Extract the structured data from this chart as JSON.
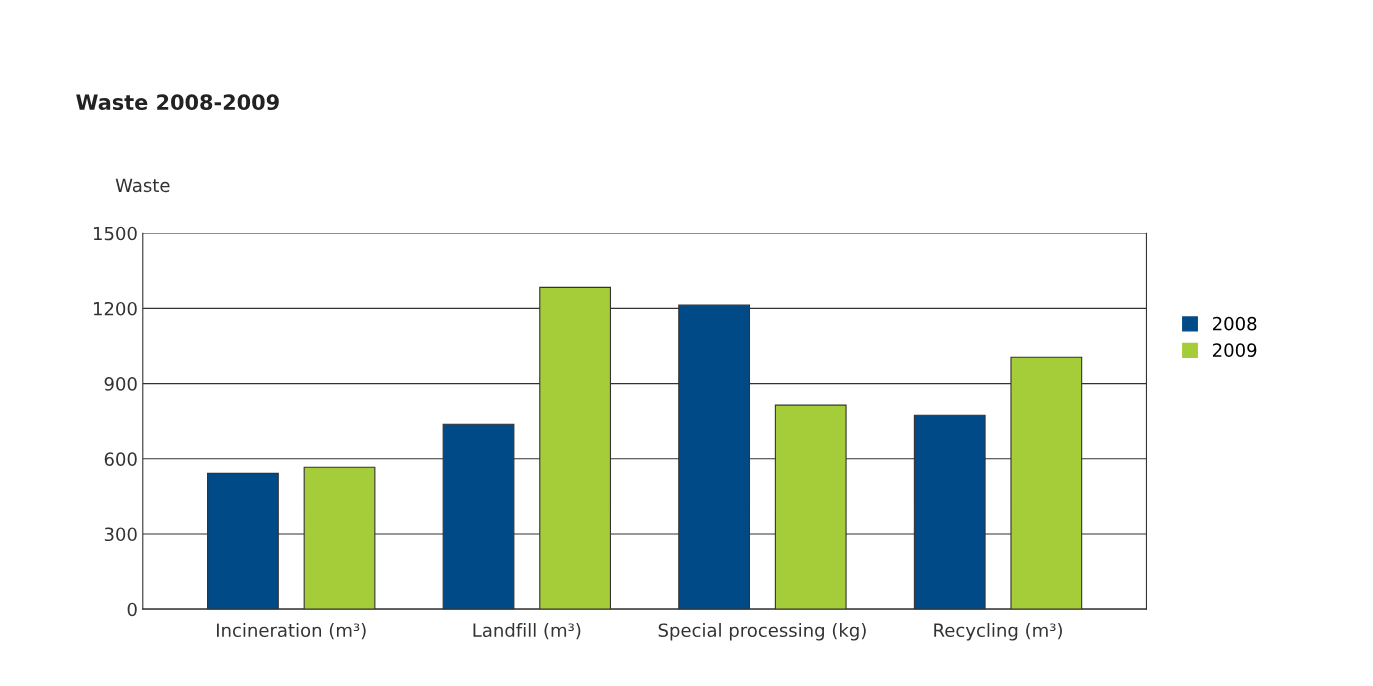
{
  "chart_data": {
    "type": "bar",
    "title": "Waste 2008-2009",
    "ylabel": "Waste",
    "categories": [
      "Incineration (m³)",
      "Landfill (m³)",
      "Special processing (kg)",
      "Recycling (m³)"
    ],
    "series": [
      {
        "name": "2008",
        "color": "#004b87",
        "values": [
          542,
          738,
          1213,
          774
        ]
      },
      {
        "name": "2009",
        "color": "#a5cd39",
        "values": [
          566,
          1284,
          814,
          1005
        ]
      }
    ],
    "ylim": [
      0,
      1500
    ],
    "yticks": [
      0,
      300,
      600,
      900,
      1200,
      1500
    ],
    "grid": "y",
    "legend": "right"
  }
}
